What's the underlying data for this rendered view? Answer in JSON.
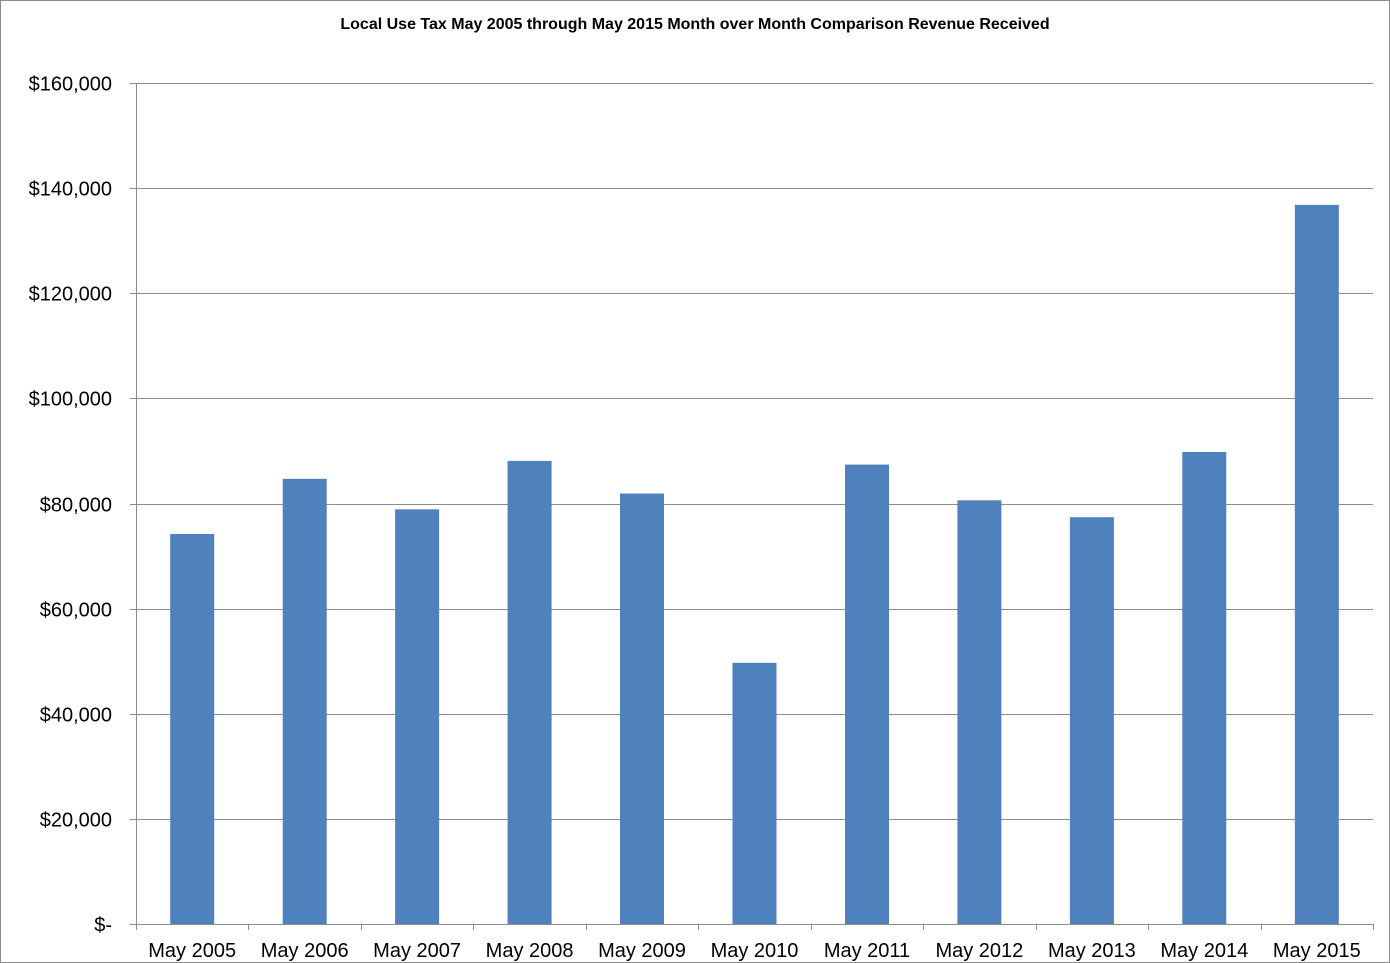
{
  "chart_data": {
    "type": "bar",
    "title": "Local Use Tax May 2005 through May 2015 Month over Month Comparison Revenue Received",
    "xlabel": "",
    "ylabel": "",
    "categories": [
      "May 2005",
      "May 2006",
      "May 2007",
      "May 2008",
      "May 2009",
      "May 2010",
      "May 2011",
      "May 2012",
      "May 2013",
      "May 2014",
      "May 2015"
    ],
    "values": [
      74200,
      84700,
      78900,
      88100,
      81900,
      49700,
      87400,
      80600,
      77400,
      89800,
      136800
    ],
    "ylim": [
      0,
      160000
    ],
    "yticks": [
      0,
      20000,
      40000,
      60000,
      80000,
      100000,
      120000,
      140000,
      160000
    ],
    "ytick_labels": [
      "$-",
      "$20,000",
      "$40,000",
      "$60,000",
      "$80,000",
      "$100,000",
      "$120,000",
      "$140,000",
      "$160,000"
    ],
    "bar_color": "#4f81bd",
    "grid": true,
    "legend": "none"
  }
}
